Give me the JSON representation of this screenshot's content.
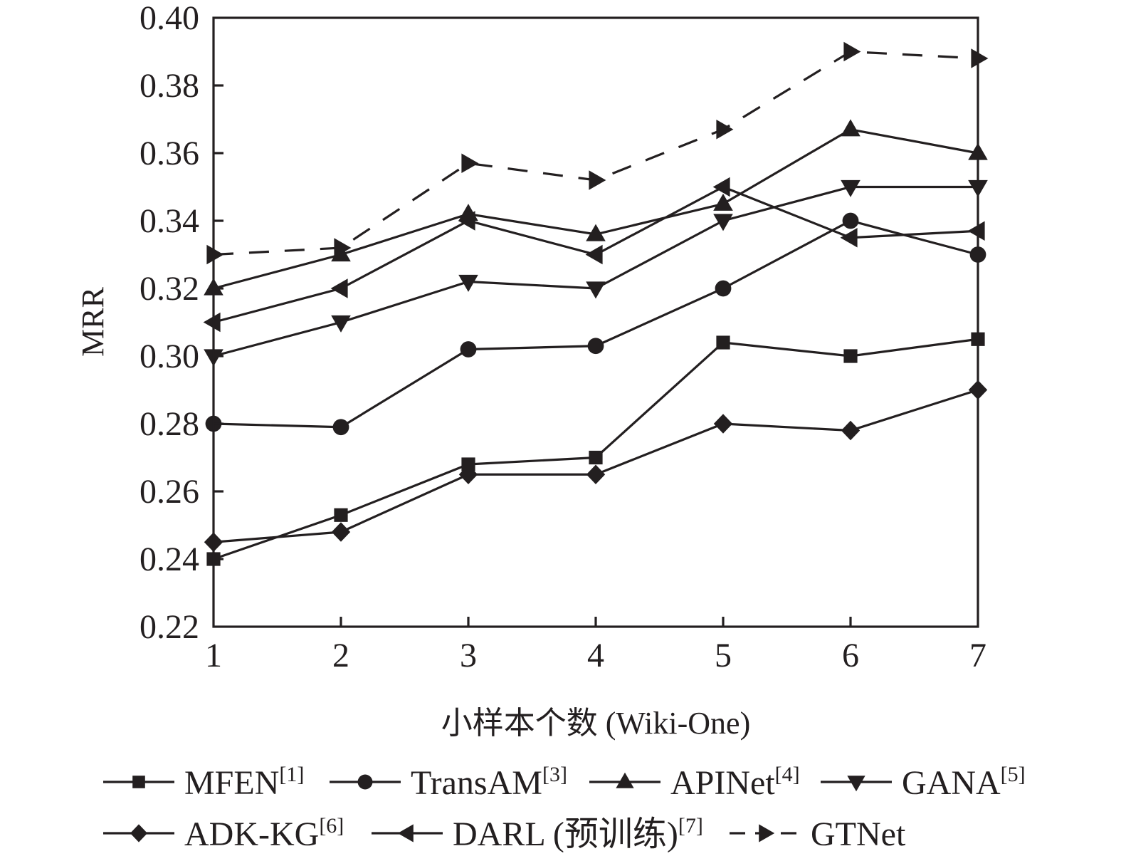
{
  "chart_data": {
    "type": "line",
    "title": "",
    "xlabel": "小样本个数 (Wiki-One)",
    "ylabel": "MRR",
    "x": [
      1,
      2,
      3,
      4,
      5,
      6,
      7
    ],
    "x_ticks": [
      "1",
      "2",
      "3",
      "4",
      "5",
      "6",
      "7"
    ],
    "y_ticks": [
      "0.22",
      "0.24",
      "0.26",
      "0.28",
      "0.30",
      "0.32",
      "0.34",
      "0.36",
      "0.38",
      "0.40"
    ],
    "xlim": [
      1,
      7
    ],
    "ylim": [
      0.22,
      0.4
    ],
    "grid": false,
    "legend_position": "bottom",
    "color": "#231f20",
    "series": [
      {
        "name": "MFEN",
        "ref": "[1]",
        "marker": "square",
        "dashed": false,
        "values": [
          0.24,
          0.253,
          0.268,
          0.27,
          0.304,
          0.3,
          0.305
        ]
      },
      {
        "name": "TransAM",
        "ref": "[3]",
        "marker": "circle",
        "dashed": false,
        "values": [
          0.28,
          0.279,
          0.302,
          0.303,
          0.32,
          0.34,
          0.33
        ]
      },
      {
        "name": "APINet",
        "ref": "[4]",
        "marker": "triangle-up",
        "dashed": false,
        "values": [
          0.32,
          0.33,
          0.342,
          0.336,
          0.345,
          0.367,
          0.36
        ]
      },
      {
        "name": "GANA",
        "ref": "[5]",
        "marker": "triangle-down",
        "dashed": false,
        "values": [
          0.3,
          0.31,
          0.322,
          0.32,
          0.34,
          0.35,
          0.35
        ]
      },
      {
        "name": "ADK-KG",
        "ref": "[6]",
        "marker": "diamond",
        "dashed": false,
        "values": [
          0.245,
          0.248,
          0.265,
          0.265,
          0.28,
          0.278,
          0.29
        ]
      },
      {
        "name": "DARL (预训练)",
        "ref": "[7]",
        "marker": "triangle-left",
        "dashed": false,
        "values": [
          0.31,
          0.32,
          0.34,
          0.33,
          0.35,
          0.335,
          0.337
        ]
      },
      {
        "name": "GTNet",
        "ref": "",
        "marker": "triangle-right",
        "dashed": true,
        "values": [
          0.33,
          0.332,
          0.357,
          0.352,
          0.367,
          0.39,
          0.388
        ]
      }
    ]
  }
}
